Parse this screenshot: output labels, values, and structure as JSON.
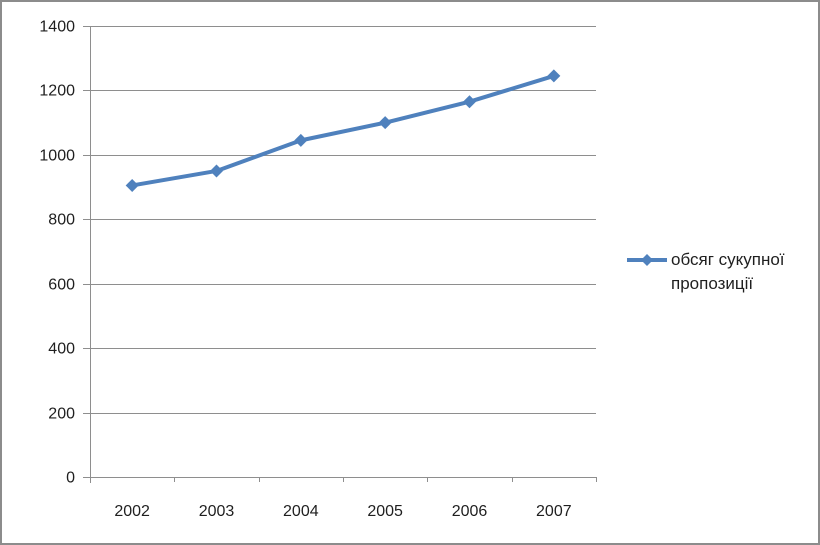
{
  "window": {
    "background": "#FFFFFF",
    "frame_border_color": "#8C8C8C"
  },
  "colors": {
    "series_blue": "#4F81BD",
    "gridline_gray": "#8E8E8E",
    "axis_gray": "#8E8E8E",
    "label_text": "#1F1F1F"
  },
  "legend": {
    "marker": "line-with-diamond-icon",
    "position": "right"
  },
  "chart_data": {
    "type": "line",
    "categories": [
      "2002",
      "2003",
      "2004",
      "2005",
      "2006",
      "2007"
    ],
    "series": [
      {
        "name": "обсяг сукупної пропозиції",
        "color": "#4F81BD",
        "marker": "diamond",
        "values": [
          905,
          950,
          1045,
          1100,
          1165,
          1245
        ]
      }
    ],
    "ylim": [
      0,
      1400
    ],
    "yticks": [
      0,
      200,
      400,
      600,
      800,
      1000,
      1200,
      1400
    ],
    "ytick_step": 200,
    "grid": "horizontal",
    "legend_position": "right"
  }
}
